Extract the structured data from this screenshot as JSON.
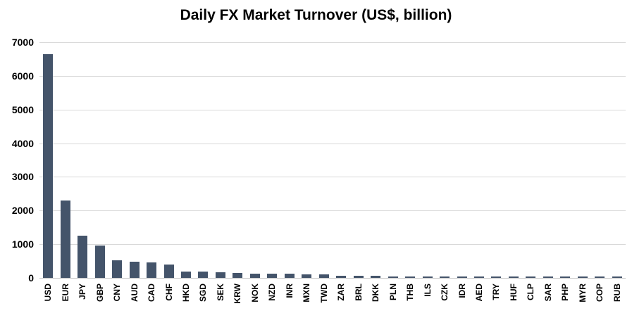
{
  "title": "Daily FX Market Turnover (US$, billion)",
  "chart_data": {
    "type": "bar",
    "title": "Daily FX Market Turnover (US$, billion)",
    "xlabel": "",
    "ylabel": "",
    "categories": [
      "USD",
      "EUR",
      "JPY",
      "GBP",
      "CNY",
      "AUD",
      "CAD",
      "CHF",
      "HKD",
      "SGD",
      "SEK",
      "KRW",
      "NOK",
      "NZD",
      "INR",
      "MXN",
      "TWD",
      "ZAR",
      "BRL",
      "DKK",
      "PLN",
      "THB",
      "ILS",
      "CZK",
      "IDR",
      "AED",
      "TRY",
      "HUF",
      "CLP",
      "SAR",
      "PHP",
      "MYR",
      "COP",
      "RUB"
    ],
    "values": [
      6639,
      2292,
      1253,
      968,
      526,
      479,
      466,
      390,
      194,
      182,
      171,
      142,
      126,
      125,
      122,
      114,
      102,
      72,
      63,
      56,
      48,
      42,
      39,
      36,
      34,
      33,
      31,
      30,
      28,
      26,
      25,
      24,
      21,
      19
    ],
    "ylim": [
      0,
      7000
    ],
    "yticks": [
      0,
      1000,
      2000,
      3000,
      4000,
      5000,
      6000,
      7000
    ],
    "grid": true,
    "legend": false,
    "bar_color": "#44546A",
    "gridline_color": "#D9D9D9",
    "axis_line_color": "#C8C8C8",
    "text_color": "#000000",
    "background": "#FFFFFF"
  }
}
